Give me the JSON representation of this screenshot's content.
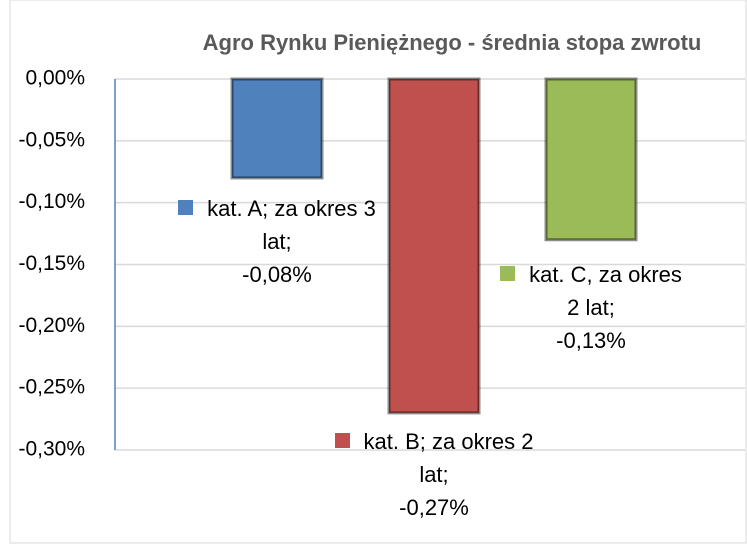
{
  "chart_data": {
    "type": "bar",
    "title": "Agro Rynku Pieniężnego - średnia stopa zwrotu",
    "categories": [
      "kat. A; za okres 3 lat;",
      "kat. B; za okres 2 lat;",
      "kat. C, za okres 2 lat;"
    ],
    "values": [
      -0.08,
      -0.27,
      -0.13
    ],
    "value_labels": [
      "-0,08%",
      "-0,27%",
      "-0,13%"
    ],
    "colors": [
      "#4f81bd",
      "#c0504d",
      "#9bbb59"
    ],
    "ylim": [
      -0.3,
      0
    ],
    "yticks": [
      {
        "value": 0,
        "label": "0,00%"
      },
      {
        "value": -0.05,
        "label": "-0,05%"
      },
      {
        "value": -0.1,
        "label": "-0,10%"
      },
      {
        "value": -0.15,
        "label": "-0,15%"
      },
      {
        "value": -0.2,
        "label": "-0,20%"
      },
      {
        "value": -0.25,
        "label": "-0,25%"
      },
      {
        "value": -0.3,
        "label": "-0,30%"
      }
    ],
    "grid": true
  }
}
